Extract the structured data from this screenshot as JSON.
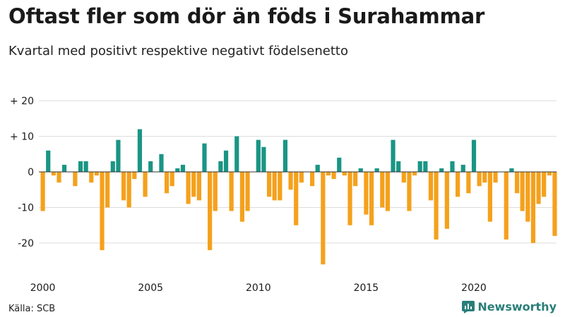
{
  "title": "Oftast fler som dör än föds i Surahammar",
  "subtitle": "Kvartal med positivt respektive negativt födelsenetto",
  "source": "Källa: SCB",
  "brand": {
    "name": "Newsworthy",
    "icon": "newsworthy-logo-icon",
    "color": "#2a7f79"
  },
  "chart_data": {
    "type": "bar",
    "xlabel": "",
    "ylabel": "",
    "ylim": [
      -26,
      20
    ],
    "grid": true,
    "colors": {
      "positive": "#1a9585",
      "negative": "#f5a11c"
    },
    "x_tick_labels": [
      "2000",
      "2005",
      "2010",
      "2015",
      "2020"
    ],
    "y_ticks": [
      {
        "value": 20,
        "label": "+ 20"
      },
      {
        "value": 10,
        "label": "+ 10"
      },
      {
        "value": 0,
        "label": "0"
      },
      {
        "value": -10,
        "label": "-10"
      },
      {
        "value": -20,
        "label": "-20"
      }
    ],
    "start_year": 2000,
    "values": [
      -11,
      6,
      -1,
      -3,
      2,
      0,
      -4,
      3,
      3,
      -3,
      -1,
      -22,
      -10,
      3,
      9,
      -8,
      -10,
      -2,
      12,
      -7,
      3,
      0,
      5,
      -6,
      -4,
      1,
      2,
      -9,
      -7,
      -8,
      8,
      -22,
      -11,
      3,
      6,
      -11,
      10,
      -14,
      -11,
      0,
      9,
      7,
      -7,
      -8,
      -8,
      9,
      -5,
      -15,
      -3,
      0,
      -4,
      2,
      -26,
      -1,
      -2,
      4,
      -1,
      -15,
      -4,
      1,
      -12,
      -15,
      1,
      -10,
      -11,
      9,
      3,
      -3,
      -11,
      -1,
      3,
      3,
      -8,
      -19,
      1,
      -16,
      3,
      -7,
      2,
      -6,
      9,
      -4,
      -3,
      -14,
      -3,
      0,
      -19,
      1,
      -6,
      -11,
      -14,
      -20,
      -9,
      -7,
      -1,
      -18
    ]
  }
}
